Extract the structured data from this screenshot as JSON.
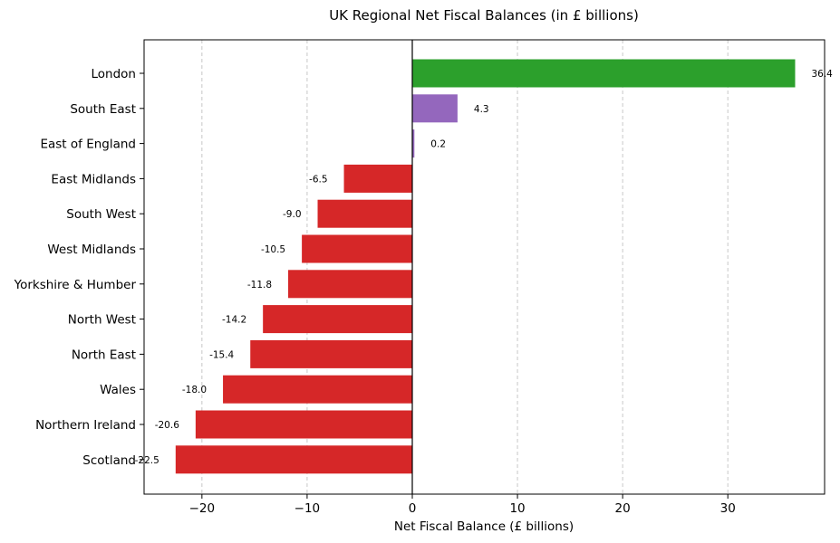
{
  "chart_data": {
    "type": "bar",
    "orientation": "horizontal",
    "title": "UK Regional Net Fiscal Balances (in £ billions)",
    "xlabel": "Net Fiscal Balance (£ billions)",
    "ylabel": "",
    "xlim": [
      -25.5,
      39.2
    ],
    "xticks": [
      -20,
      -10,
      0,
      10,
      20,
      30
    ],
    "xtick_labels": [
      "−20",
      "−10",
      "0",
      "10",
      "20",
      "30"
    ],
    "grid": "vertical dashed",
    "categories": [
      "London",
      "South East",
      "East of England",
      "East Midlands",
      "South West",
      "West Midlands",
      "Yorkshire & Humber",
      "North West",
      "North East",
      "Wales",
      "Northern Ireland",
      "Scotland"
    ],
    "values": [
      36.4,
      4.3,
      0.2,
      -6.5,
      -9.0,
      -10.5,
      -11.8,
      -14.2,
      -15.4,
      -18.0,
      -20.6,
      -22.5
    ],
    "value_labels": [
      "36.4",
      "4.3",
      "0.2",
      "-6.5",
      "-9.0",
      "-10.5",
      "-11.8",
      "-14.2",
      "-15.4",
      "-18.0",
      "-20.6",
      "-22.5"
    ],
    "colors": [
      "#2ca02c",
      "#9467bd",
      "#9467bd",
      "#d62728",
      "#d62728",
      "#d62728",
      "#d62728",
      "#d62728",
      "#d62728",
      "#d62728",
      "#d62728",
      "#d62728"
    ]
  }
}
